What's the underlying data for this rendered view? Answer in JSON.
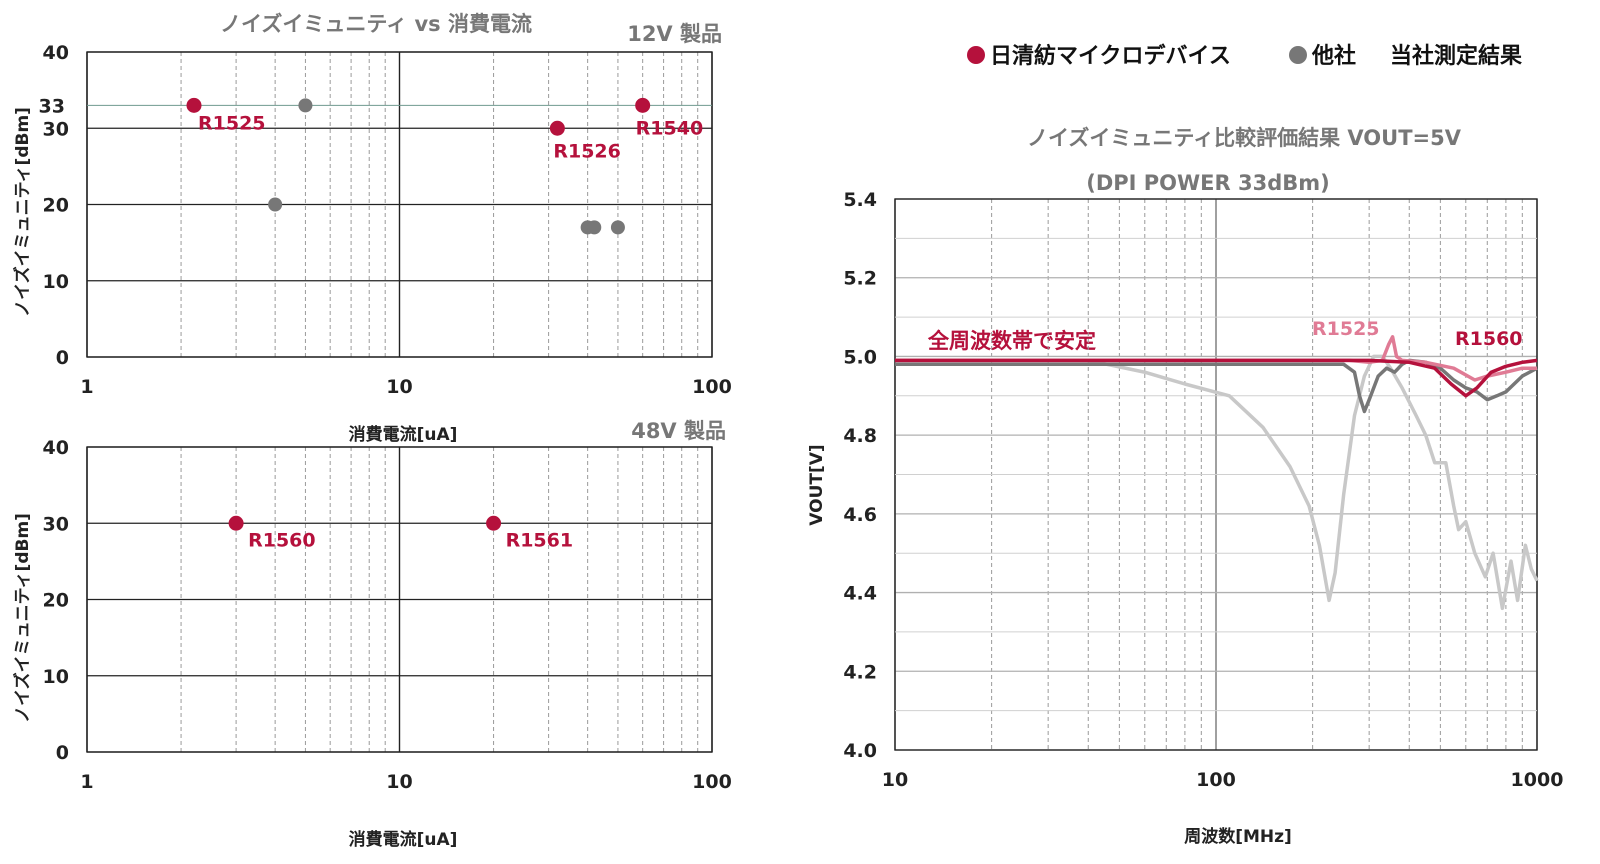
{
  "colors": {
    "nisshinbo": "#b5113c",
    "other": "#777777",
    "nisshinbo_light": "#e07b95",
    "other_light": "#c8c8c8",
    "grid_major": "#222222",
    "grid_minor": "#9a9a9a",
    "title_gray": "#777777"
  },
  "legend": {
    "nisshinbo_label": "日清紡マイクロデバイス",
    "other_label": "他社",
    "result_label": "当社測定結果"
  },
  "chart_data": [
    {
      "type": "scatter",
      "title": "ノイズイミュニティ vs 消費電流",
      "subtitle": "12V 製品",
      "xlabel": "消費電流[uA]",
      "ylabel": "ノイズイミュニティ[dBm]",
      "xscale": "log",
      "xlim": [
        1,
        100
      ],
      "ylim": [
        0,
        40
      ],
      "x_ticks": [
        "1",
        "10",
        "100"
      ],
      "y_ticks": [
        "0",
        "10",
        "20",
        "30",
        "40"
      ],
      "y_extra_tick": "33",
      "reference_line_y": 33,
      "series": [
        {
          "name": "日清紡マイクロデバイス",
          "points": [
            {
              "x": 2.2,
              "y": 33,
              "label": "R1525"
            },
            {
              "x": 32,
              "y": 30,
              "label": "R1526"
            },
            {
              "x": 60,
              "y": 33,
              "label": "R1540"
            }
          ]
        },
        {
          "name": "他社",
          "points": [
            {
              "x": 4,
              "y": 20
            },
            {
              "x": 5,
              "y": 33
            },
            {
              "x": 40,
              "y": 17
            },
            {
              "x": 42,
              "y": 17
            },
            {
              "x": 50,
              "y": 17
            }
          ]
        }
      ]
    },
    {
      "type": "scatter",
      "subtitle": "48V 製品",
      "xlabel": "消費電流[uA]",
      "ylabel": "ノイズイミュニティ[dBm]",
      "xscale": "log",
      "xlim": [
        1,
        100
      ],
      "ylim": [
        0,
        40
      ],
      "x_ticks": [
        "1",
        "10",
        "100"
      ],
      "y_ticks": [
        "0",
        "10",
        "20",
        "30",
        "40"
      ],
      "series": [
        {
          "name": "日清紡マイクロデバイス",
          "points": [
            {
              "x": 3,
              "y": 30,
              "label": "R1560"
            },
            {
              "x": 20,
              "y": 30,
              "label": "R1561"
            }
          ]
        }
      ]
    },
    {
      "type": "line",
      "title": "ノイズイミュニティ比較評価結果 VOUT=5V",
      "subtitle": "(DPI POWER 33dBm)",
      "xlabel": "周波数[MHz]",
      "ylabel": "VOUT[V]",
      "xscale": "log",
      "xlim": [
        10,
        1000
      ],
      "ylim": [
        4.0,
        5.4
      ],
      "x_ticks": [
        "10",
        "100",
        "1000"
      ],
      "y_ticks": [
        "4.0",
        "4.2",
        "4.4",
        "4.6",
        "4.8",
        "5.0",
        "5.2",
        "5.4"
      ],
      "annotation": "全周波数帯で安定",
      "series": [
        {
          "label": "R1525",
          "points": [
            [
              10,
              4.99
            ],
            [
              100,
              4.99
            ],
            [
              200,
              4.99
            ],
            [
              260,
              4.99
            ],
            [
              300,
              4.985
            ],
            [
              330,
              4.99
            ],
            [
              345,
              5.03
            ],
            [
              355,
              5.05
            ],
            [
              365,
              5.0
            ],
            [
              380,
              4.99
            ],
            [
              450,
              4.985
            ],
            [
              550,
              4.97
            ],
            [
              640,
              4.94
            ],
            [
              700,
              4.95
            ],
            [
              800,
              4.96
            ],
            [
              900,
              4.97
            ],
            [
              1000,
              4.97
            ]
          ]
        },
        {
          "label": "R1560",
          "points": [
            [
              10,
              4.99
            ],
            [
              100,
              4.99
            ],
            [
              200,
              4.99
            ],
            [
              300,
              4.99
            ],
            [
              400,
              4.985
            ],
            [
              480,
              4.97
            ],
            [
              540,
              4.93
            ],
            [
              600,
              4.9
            ],
            [
              650,
              4.92
            ],
            [
              720,
              4.96
            ],
            [
              800,
              4.975
            ],
            [
              900,
              4.985
            ],
            [
              1000,
              4.99
            ]
          ]
        },
        {
          "points": [
            [
              10,
              4.98
            ],
            [
              100,
              4.98
            ],
            [
              200,
              4.98
            ],
            [
              250,
              4.98
            ],
            [
              270,
              4.96
            ],
            [
              280,
              4.9
            ],
            [
              290,
              4.86
            ],
            [
              300,
              4.89
            ],
            [
              320,
              4.95
            ],
            [
              340,
              4.97
            ],
            [
              360,
              4.96
            ],
            [
              380,
              4.98
            ],
            [
              400,
              4.99
            ],
            [
              450,
              4.985
            ],
            [
              500,
              4.97
            ],
            [
              550,
              4.94
            ],
            [
              600,
              4.92
            ],
            [
              650,
              4.91
            ],
            [
              700,
              4.89
            ],
            [
              750,
              4.9
            ],
            [
              800,
              4.91
            ],
            [
              900,
              4.95
            ],
            [
              1000,
              4.97
            ]
          ]
        },
        {
          "points": [
            [
              10,
              4.99
            ],
            [
              40,
              4.99
            ],
            [
              60,
              4.96
            ],
            [
              80,
              4.93
            ],
            [
              110,
              4.9
            ],
            [
              140,
              4.82
            ],
            [
              170,
              4.72
            ],
            [
              195,
              4.62
            ],
            [
              210,
              4.52
            ],
            [
              225,
              4.38
            ],
            [
              235,
              4.45
            ],
            [
              250,
              4.65
            ],
            [
              270,
              4.85
            ],
            [
              290,
              4.95
            ],
            [
              310,
              5.0
            ],
            [
              330,
              5.0
            ],
            [
              350,
              4.97
            ],
            [
              380,
              4.92
            ],
            [
              420,
              4.85
            ],
            [
              450,
              4.8
            ],
            [
              480,
              4.73
            ],
            [
              520,
              4.73
            ],
            [
              550,
              4.62
            ],
            [
              570,
              4.56
            ],
            [
              600,
              4.58
            ],
            [
              640,
              4.5
            ],
            [
              690,
              4.44
            ],
            [
              730,
              4.5
            ],
            [
              780,
              4.36
            ],
            [
              830,
              4.48
            ],
            [
              870,
              4.38
            ],
            [
              920,
              4.52
            ],
            [
              960,
              4.46
            ],
            [
              1000,
              4.43
            ]
          ]
        }
      ]
    }
  ]
}
